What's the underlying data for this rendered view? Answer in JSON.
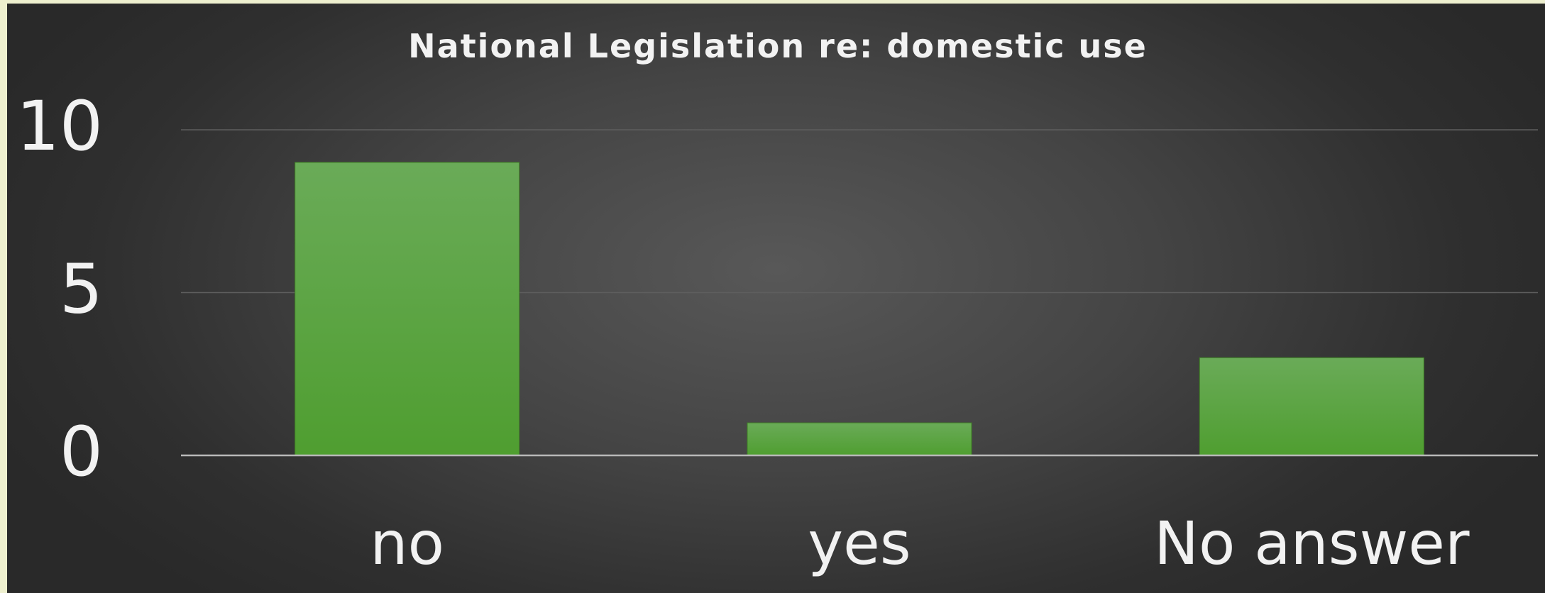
{
  "chart_data": {
    "type": "bar",
    "title": "National Legislation re: domestic use",
    "categories": [
      "no",
      "yes",
      "No answer"
    ],
    "values": [
      9,
      1,
      3
    ],
    "y_ticks": [
      "0",
      "5",
      "10"
    ],
    "ylim": [
      0,
      10
    ],
    "xlabel": "",
    "ylabel": "",
    "grid": true,
    "legend": "none",
    "bar_color": "#4f9e30",
    "bar_color_light": "#6aab58"
  }
}
